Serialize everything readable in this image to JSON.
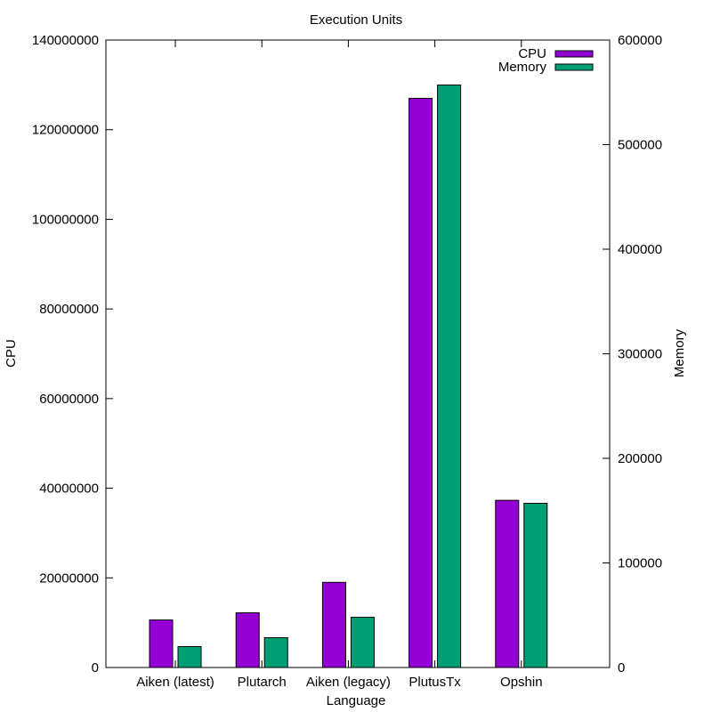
{
  "chart_data": {
    "type": "bar",
    "title": "Execution Units",
    "xlabel": "Language",
    "ylabel": "CPU",
    "y2label": "Memory",
    "categories": [
      "Aiken (latest)",
      "Plutarch",
      "Aiken (legacy)",
      "PlutusTx",
      "Opshin"
    ],
    "series": [
      {
        "name": "CPU",
        "axis": "left",
        "color": "#9400d3",
        "values": [
          10600000,
          12200000,
          19000000,
          127000000,
          37300000
        ]
      },
      {
        "name": "Memory",
        "axis": "right",
        "color": "#009e73",
        "values": [
          20000,
          28500,
          48000,
          557000,
          157000
        ]
      }
    ],
    "ylim": [
      0,
      140000000
    ],
    "yticks": [
      0,
      20000000,
      40000000,
      60000000,
      80000000,
      100000000,
      120000000,
      140000000
    ],
    "ytick_labels": [
      "0",
      "20000000",
      "40000000",
      "60000000",
      "80000000",
      "100000000",
      "120000000",
      "140000000"
    ],
    "y2lim": [
      0,
      600000
    ],
    "y2ticks": [
      0,
      100000,
      200000,
      300000,
      400000,
      500000,
      600000
    ],
    "y2tick_labels": [
      "0",
      "100000",
      "200000",
      "300000",
      "400000",
      "500000",
      "600000"
    ],
    "grid": false,
    "legend": "top-right"
  }
}
